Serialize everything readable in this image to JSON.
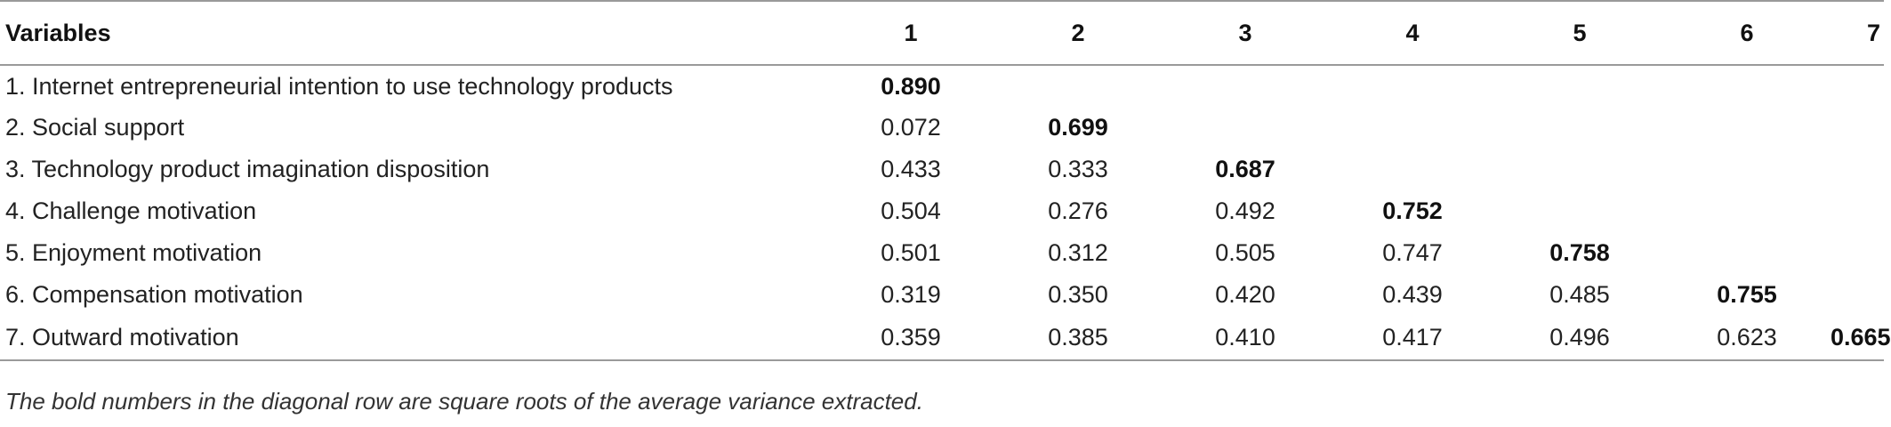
{
  "table": {
    "headers": [
      "Variables",
      "1",
      "2",
      "3",
      "4",
      "5",
      "6",
      "7"
    ],
    "rows": [
      {
        "label": "1. Internet entrepreneurial intention to use technology products",
        "values": [
          "0.890",
          "",
          "",
          "",
          "",
          "",
          ""
        ]
      },
      {
        "label": "2. Social support",
        "values": [
          "0.072",
          "0.699",
          "",
          "",
          "",
          "",
          ""
        ]
      },
      {
        "label": "3. Technology product imagination disposition",
        "values": [
          "0.433",
          "0.333",
          "0.687",
          "",
          "",
          "",
          ""
        ]
      },
      {
        "label": "4. Challenge motivation",
        "values": [
          "0.504",
          "0.276",
          "0.492",
          "0.752",
          "",
          "",
          ""
        ]
      },
      {
        "label": "5. Enjoyment motivation",
        "values": [
          "0.501",
          "0.312",
          "0.505",
          "0.747",
          "0.758",
          "",
          ""
        ]
      },
      {
        "label": "6. Compensation motivation",
        "values": [
          "0.319",
          "0.350",
          "0.420",
          "0.439",
          "0.485",
          "0.755",
          ""
        ]
      },
      {
        "label": "7. Outward motivation",
        "values": [
          "0.359",
          "0.385",
          "0.410",
          "0.417",
          "0.496",
          "0.623",
          "0.665"
        ]
      }
    ],
    "footnote": "The bold numbers in the diagonal row are square roots of the average variance extracted."
  }
}
